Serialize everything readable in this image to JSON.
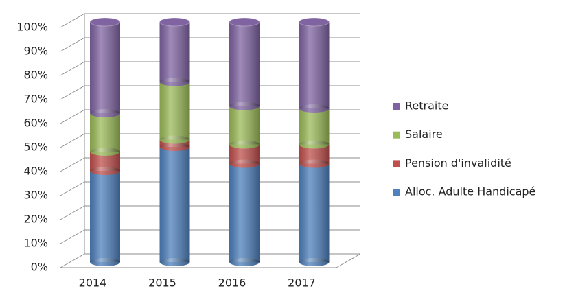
{
  "chart_data": {
    "type": "bar",
    "stacked": true,
    "three_d": true,
    "categories": [
      "2014",
      "2015",
      "2016",
      "2017"
    ],
    "series": [
      {
        "name": "Alloc. Adulte Handicapé",
        "color": "#4f81bd",
        "values": [
          38,
          48,
          41,
          41
        ]
      },
      {
        "name": "Pension d'invalidité",
        "color": "#c0504d",
        "values": [
          8,
          3,
          8,
          8
        ]
      },
      {
        "name": "Salaire",
        "color": "#9bbb59",
        "values": [
          16,
          24,
          16,
          15
        ]
      },
      {
        "name": "Retraite",
        "color": "#8064a2",
        "values": [
          38,
          25,
          35,
          36
        ]
      }
    ],
    "ylim": [
      0,
      100
    ],
    "yticks": [
      {
        "value": 0,
        "label": "0%"
      },
      {
        "value": 10,
        "label": "10%"
      },
      {
        "value": 20,
        "label": "20%"
      },
      {
        "value": 30,
        "label": "30%"
      },
      {
        "value": 40,
        "label": "40%"
      },
      {
        "value": 50,
        "label": "50%"
      },
      {
        "value": 60,
        "label": "60%"
      },
      {
        "value": 70,
        "label": "70%"
      },
      {
        "value": 80,
        "label": "80%"
      },
      {
        "value": 90,
        "label": "90%"
      },
      {
        "value": 100,
        "label": "100%"
      }
    ],
    "grid": true,
    "legend": "right"
  }
}
